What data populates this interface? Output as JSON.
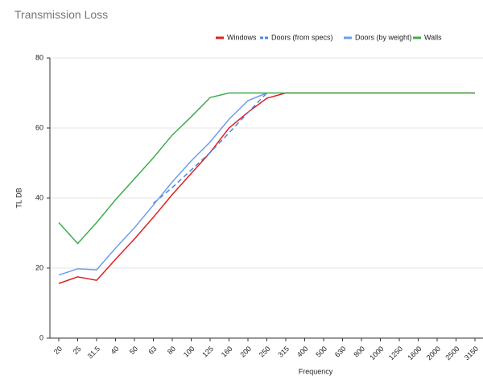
{
  "chart_data": {
    "type": "line",
    "title": "Transmission Loss",
    "x_label": "Frequency",
    "y_label": "TL DB",
    "categories": [
      "20",
      "25",
      "31.5",
      "40",
      "50",
      "63",
      "80",
      "100",
      "125",
      "160",
      "200",
      "250",
      "315",
      "400",
      "500",
      "630",
      "800",
      "1000",
      "1250",
      "1600",
      "2000",
      "2500",
      "3150"
    ],
    "series": [
      {
        "name": "Windows",
        "color": "#e02020",
        "dashed": false,
        "values": [
          15.6,
          17.5,
          16.5,
          22.5,
          28.3,
          34.5,
          41,
          47,
          53,
          60,
          64.5,
          68.5,
          70,
          70,
          70,
          70,
          70,
          70,
          70,
          70,
          70,
          70,
          70
        ]
      },
      {
        "name": "Doors (from specs)",
        "color": "#4a86e8",
        "dashed": true,
        "values": [
          null,
          null,
          null,
          null,
          null,
          38.5,
          43,
          48,
          53,
          58.6,
          64.4,
          70,
          null,
          null,
          null,
          null,
          null,
          null,
          null,
          null,
          null,
          null,
          null
        ]
      },
      {
        "name": "Doors (by weight)",
        "color": "#6d9eeb",
        "dashed": false,
        "values": [
          18,
          19.8,
          19.5,
          25.7,
          31.5,
          38,
          44.6,
          50.6,
          56,
          62.5,
          67.8,
          70,
          null,
          null,
          null,
          null,
          null,
          null,
          null,
          null,
          null,
          null,
          null
        ]
      },
      {
        "name": "Walls",
        "color": "#3cae4a",
        "dashed": false,
        "values": [
          33,
          27,
          33,
          39.5,
          45.5,
          51.5,
          58,
          63.2,
          68.7,
          70,
          70,
          70,
          70,
          70,
          70,
          70,
          70,
          70,
          70,
          70,
          70,
          70,
          70
        ]
      }
    ],
    "ylim": [
      0,
      80
    ],
    "yticks": [
      0,
      20,
      40,
      60,
      80
    ],
    "grid": true
  }
}
